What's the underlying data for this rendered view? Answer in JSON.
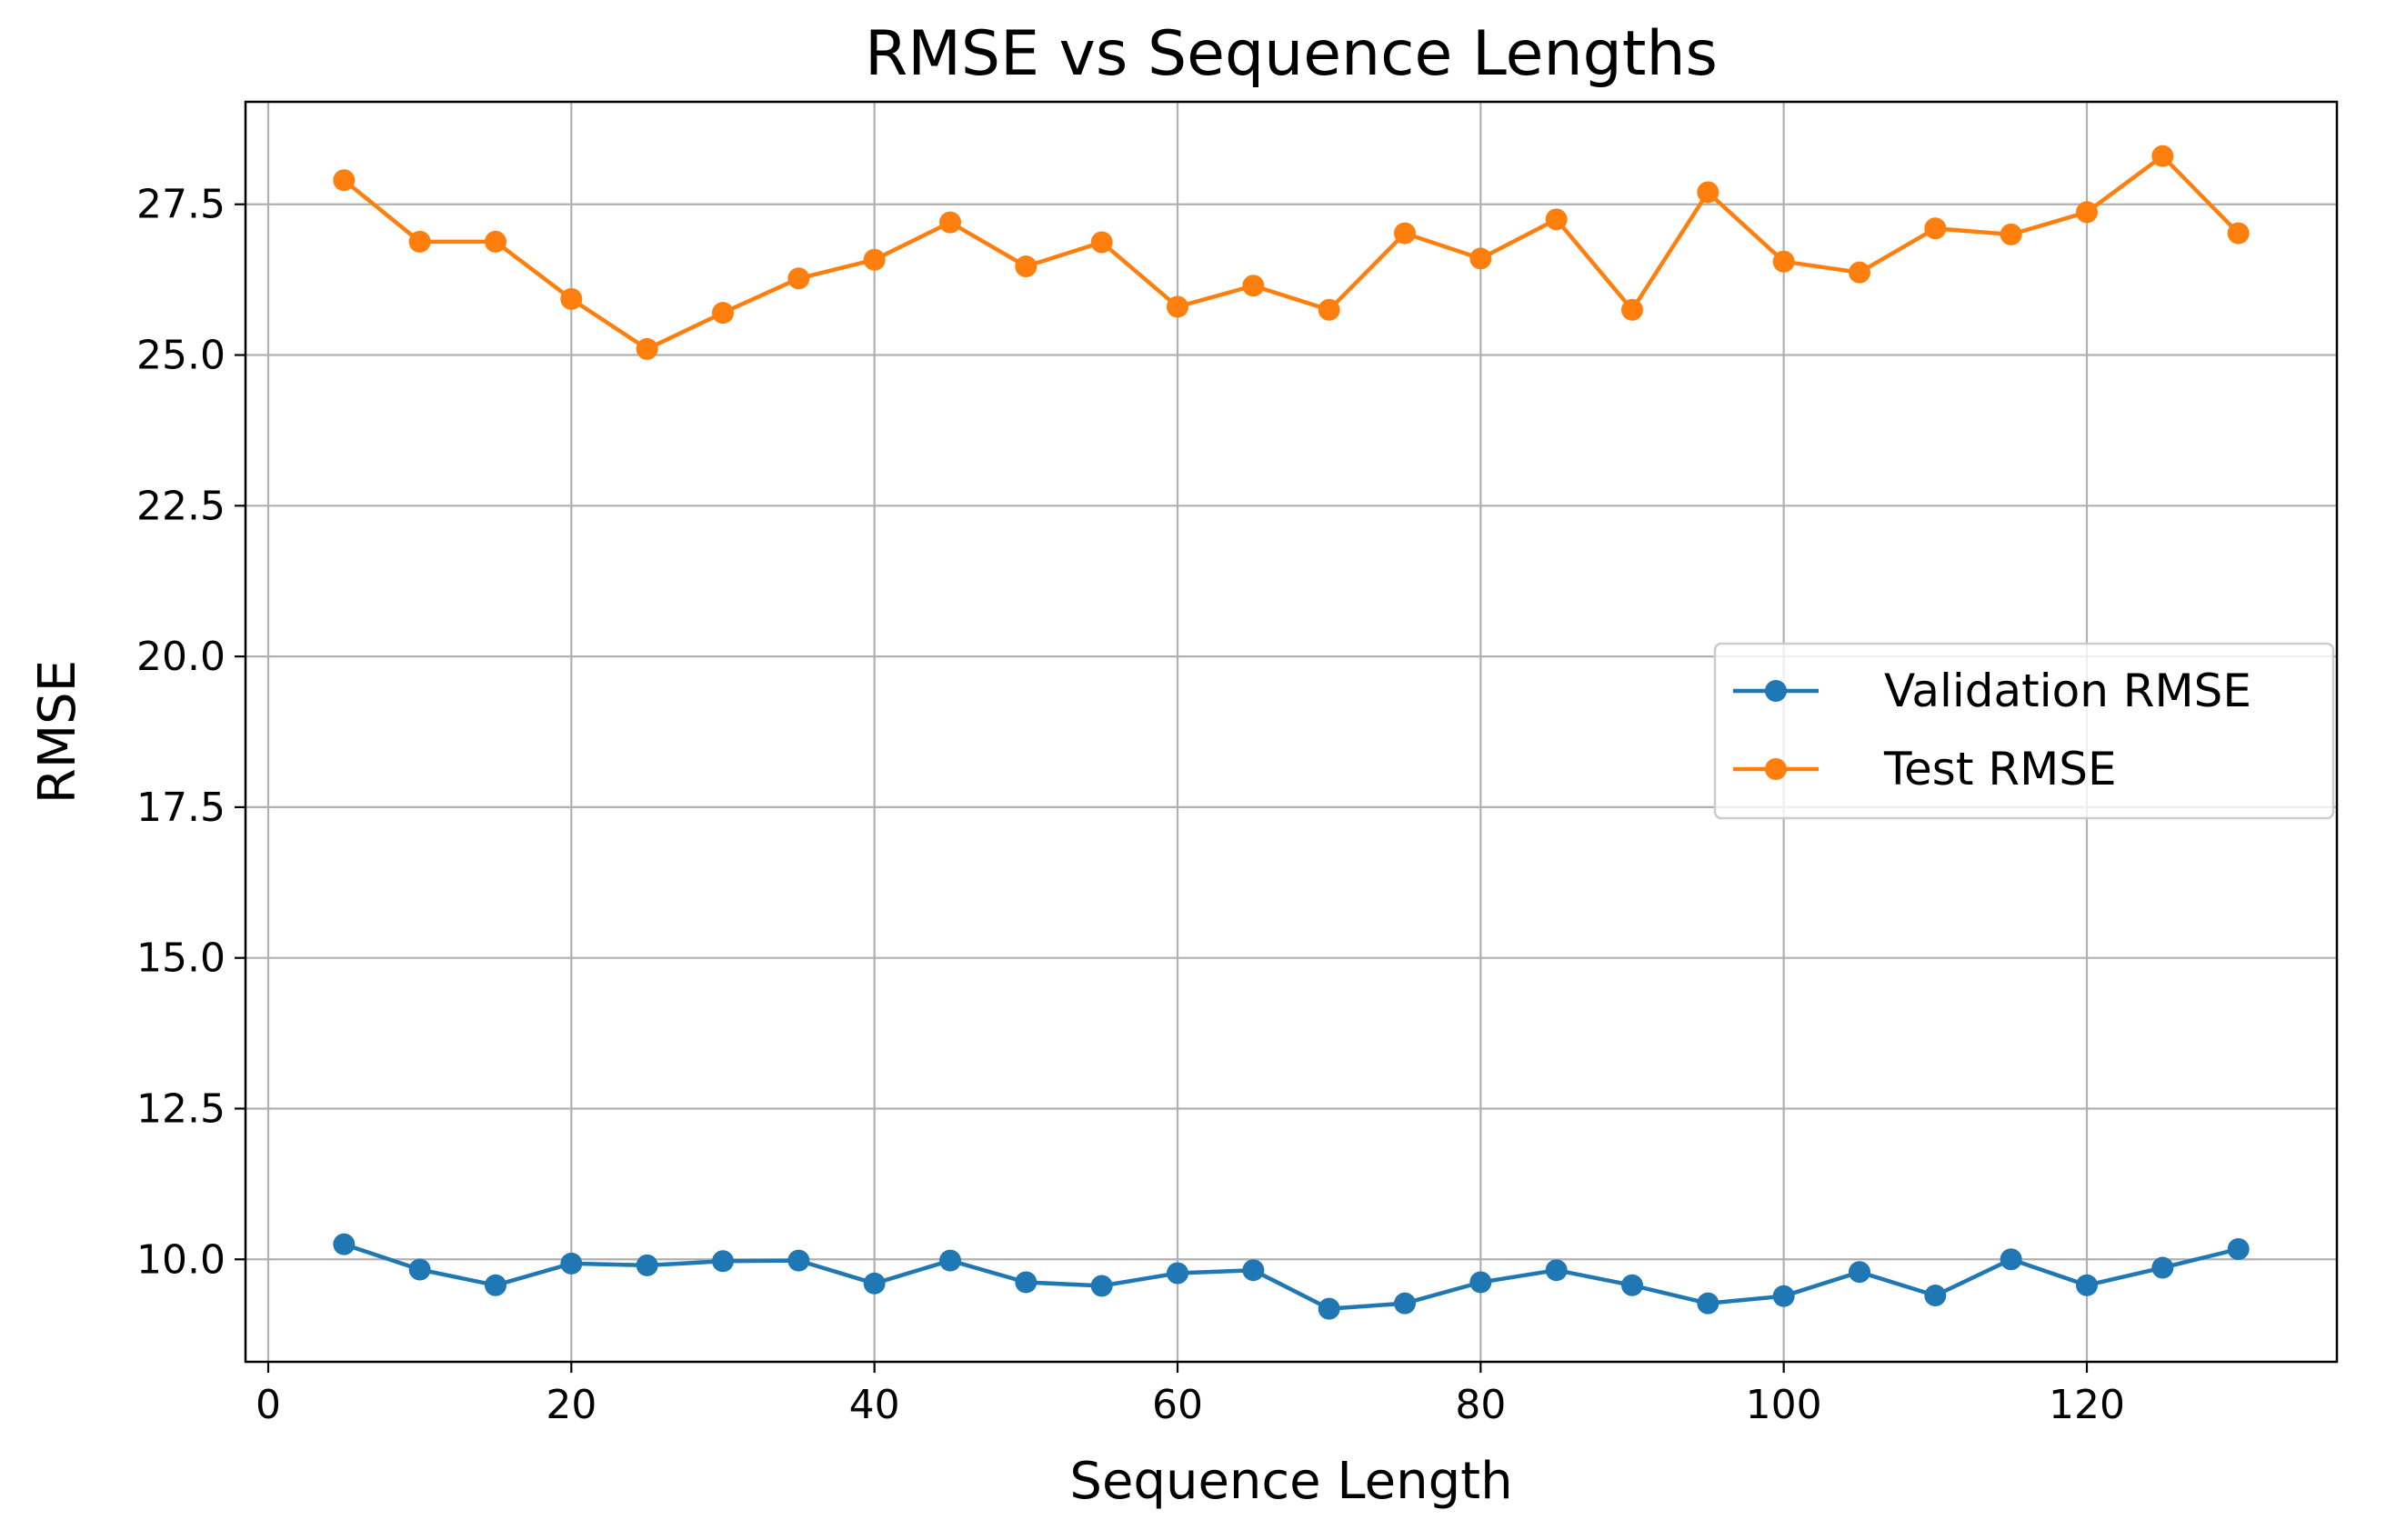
{
  "chart_data": {
    "type": "line",
    "title": "RMSE vs Sequence Lengths",
    "xlabel": "Sequence Length",
    "ylabel": "RMSE",
    "xlim": [
      -1.5,
      136.5
    ],
    "ylim": [
      8.3,
      29.2
    ],
    "x_ticks": [
      0,
      20,
      40,
      60,
      80,
      100,
      120
    ],
    "y_ticks": [
      10.0,
      12.5,
      15.0,
      17.5,
      20.0,
      22.5,
      25.0,
      27.5
    ],
    "x_tick_labels": [
      "0",
      "20",
      "40",
      "60",
      "80",
      "100",
      "120"
    ],
    "y_tick_labels": [
      "10.0",
      "12.5",
      "15.0",
      "17.5",
      "20.0",
      "22.5",
      "25.0",
      "27.5"
    ],
    "grid": true,
    "legend_position": "center-right",
    "x": [
      5,
      10,
      15,
      20,
      25,
      30,
      35,
      40,
      45,
      50,
      55,
      60,
      65,
      70,
      75,
      80,
      85,
      90,
      95,
      100,
      105,
      110,
      115,
      120,
      125,
      130
    ],
    "series": [
      {
        "name": "Validation RMSE",
        "color": "#1f77b4",
        "marker": "circle",
        "values": [
          10.25,
          9.83,
          9.57,
          9.93,
          9.9,
          9.97,
          9.98,
          9.6,
          9.98,
          9.62,
          9.56,
          9.77,
          9.82,
          9.18,
          9.27,
          9.62,
          9.82,
          9.57,
          9.27,
          9.39,
          9.79,
          9.4,
          10.0,
          9.57,
          9.86,
          10.17
        ]
      },
      {
        "name": "Test RMSE",
        "color": "#ff7f0e",
        "marker": "circle",
        "values": [
          27.9,
          26.88,
          26.88,
          25.93,
          25.1,
          25.7,
          26.27,
          26.58,
          27.2,
          26.47,
          26.87,
          25.8,
          26.15,
          25.75,
          27.02,
          26.6,
          27.25,
          25.75,
          27.7,
          26.55,
          26.37,
          27.1,
          27.0,
          27.37,
          28.3,
          27.02
        ]
      }
    ]
  }
}
